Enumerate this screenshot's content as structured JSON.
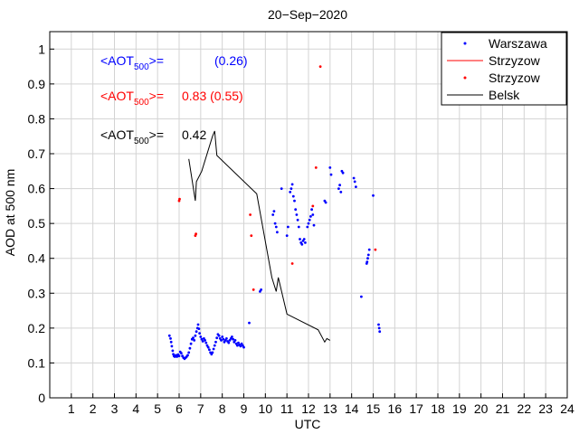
{
  "chart_data": {
    "type": "scatter",
    "title": "20−Sep−2020",
    "xlabel": "UTC",
    "ylabel": "AOD at 500 nm",
    "xlim": [
      0,
      24
    ],
    "ylim": [
      0,
      1.05
    ],
    "xticks": [
      1,
      2,
      3,
      4,
      5,
      6,
      7,
      8,
      9,
      10,
      11,
      12,
      13,
      14,
      15,
      16,
      17,
      18,
      19,
      20,
      21,
      22,
      23,
      24
    ],
    "yticks": [
      0,
      0.1,
      0.2,
      0.3,
      0.4,
      0.5,
      0.6,
      0.7,
      0.8,
      0.9,
      1
    ],
    "ytick_labels": [
      "0",
      "0.1",
      "0.2",
      "0.3",
      "0.4",
      "0.5",
      "0.6",
      "0.7",
      "0.8",
      "0.9",
      "1"
    ],
    "grid": true,
    "legend_position": "top-right",
    "legend": [
      {
        "label": "Warszawa",
        "style": "dots",
        "color": "#0000ff"
      },
      {
        "label": "Strzyzow",
        "style": "line",
        "color": "#ff0000"
      },
      {
        "label": "Strzyzow",
        "style": "dots",
        "color": "#ff0000"
      },
      {
        "label": "Belsk",
        "style": "line",
        "color": "#000000"
      }
    ],
    "annotations": [
      {
        "prefix": "<AOT",
        "sub": "500",
        "suffix": ">=",
        "value": "(0.26)",
        "color": "#0000ff"
      },
      {
        "prefix": "<AOT",
        "sub": "500",
        "suffix": ">=",
        "value": "0.83 (0.55)",
        "color": "#ff0000"
      },
      {
        "prefix": "<AOT",
        "sub": "500",
        "suffix": ">=",
        "value": "0.42",
        "color": "#000000"
      }
    ],
    "series": [
      {
        "name": "Warszawa",
        "kind": "scatter",
        "color": "#0000ff",
        "points": [
          [
            5.55,
            0.178
          ],
          [
            5.6,
            0.17
          ],
          [
            5.63,
            0.16
          ],
          [
            5.66,
            0.148
          ],
          [
            5.7,
            0.135
          ],
          [
            5.73,
            0.125
          ],
          [
            5.76,
            0.12
          ],
          [
            5.8,
            0.118
          ],
          [
            5.85,
            0.122
          ],
          [
            5.9,
            0.118
          ],
          [
            5.95,
            0.124
          ],
          [
            6.0,
            0.12
          ],
          [
            6.05,
            0.132
          ],
          [
            6.1,
            0.128
          ],
          [
            6.15,
            0.12
          ],
          [
            6.2,
            0.115
          ],
          [
            6.25,
            0.112
          ],
          [
            6.3,
            0.115
          ],
          [
            6.35,
            0.118
          ],
          [
            6.4,
            0.122
          ],
          [
            6.45,
            0.13
          ],
          [
            6.5,
            0.142
          ],
          [
            6.55,
            0.155
          ],
          [
            6.6,
            0.168
          ],
          [
            6.65,
            0.172
          ],
          [
            6.7,
            0.165
          ],
          [
            6.75,
            0.178
          ],
          [
            6.8,
            0.19
          ],
          [
            6.85,
            0.2
          ],
          [
            6.88,
            0.21
          ],
          [
            6.92,
            0.198
          ],
          [
            6.95,
            0.185
          ],
          [
            7.0,
            0.175
          ],
          [
            7.05,
            0.168
          ],
          [
            7.1,
            0.162
          ],
          [
            7.15,
            0.17
          ],
          [
            7.2,
            0.165
          ],
          [
            7.25,
            0.158
          ],
          [
            7.3,
            0.15
          ],
          [
            7.35,
            0.145
          ],
          [
            7.4,
            0.138
          ],
          [
            7.45,
            0.13
          ],
          [
            7.5,
            0.125
          ],
          [
            7.55,
            0.13
          ],
          [
            7.6,
            0.14
          ],
          [
            7.65,
            0.15
          ],
          [
            7.7,
            0.16
          ],
          [
            7.75,
            0.172
          ],
          [
            7.8,
            0.182
          ],
          [
            7.85,
            0.178
          ],
          [
            7.9,
            0.17
          ],
          [
            7.95,
            0.165
          ],
          [
            8.0,
            0.175
          ],
          [
            8.05,
            0.168
          ],
          [
            8.1,
            0.16
          ],
          [
            8.15,
            0.165
          ],
          [
            8.2,
            0.17
          ],
          [
            8.25,
            0.162
          ],
          [
            8.3,
            0.158
          ],
          [
            8.35,
            0.165
          ],
          [
            8.4,
            0.17
          ],
          [
            8.45,
            0.175
          ],
          [
            8.5,
            0.168
          ],
          [
            8.55,
            0.16
          ],
          [
            8.6,
            0.165
          ],
          [
            8.65,
            0.155
          ],
          [
            8.7,
            0.15
          ],
          [
            8.75,
            0.158
          ],
          [
            8.8,
            0.152
          ],
          [
            8.85,
            0.148
          ],
          [
            8.9,
            0.155
          ],
          [
            8.95,
            0.15
          ],
          [
            9.0,
            0.145
          ],
          [
            9.25,
            0.215
          ],
          [
            9.75,
            0.305
          ],
          [
            9.8,
            0.31
          ],
          [
            10.35,
            0.525
          ],
          [
            10.4,
            0.535
          ],
          [
            10.45,
            0.5
          ],
          [
            10.5,
            0.49
          ],
          [
            10.55,
            0.475
          ],
          [
            10.75,
            0.6
          ],
          [
            11.0,
            0.465
          ],
          [
            11.05,
            0.49
          ],
          [
            11.15,
            0.59
          ],
          [
            11.2,
            0.6
          ],
          [
            11.25,
            0.612
          ],
          [
            11.3,
            0.578
          ],
          [
            11.35,
            0.565
          ],
          [
            11.4,
            0.54
          ],
          [
            11.45,
            0.525
          ],
          [
            11.5,
            0.51
          ],
          [
            11.55,
            0.49
          ],
          [
            11.6,
            0.455
          ],
          [
            11.65,
            0.445
          ],
          [
            11.7,
            0.44
          ],
          [
            11.75,
            0.45
          ],
          [
            11.8,
            0.455
          ],
          [
            11.85,
            0.445
          ],
          [
            11.95,
            0.49
          ],
          [
            12.0,
            0.5
          ],
          [
            12.05,
            0.51
          ],
          [
            12.1,
            0.52
          ],
          [
            12.15,
            0.54
          ],
          [
            12.2,
            0.525
          ],
          [
            12.25,
            0.495
          ],
          [
            12.75,
            0.565
          ],
          [
            12.8,
            0.56
          ],
          [
            13.0,
            0.66
          ],
          [
            13.05,
            0.64
          ],
          [
            13.4,
            0.6
          ],
          [
            13.45,
            0.61
          ],
          [
            13.5,
            0.59
          ],
          [
            13.55,
            0.65
          ],
          [
            13.6,
            0.645
          ],
          [
            14.1,
            0.63
          ],
          [
            14.15,
            0.62
          ],
          [
            14.2,
            0.605
          ],
          [
            14.45,
            0.29
          ],
          [
            14.7,
            0.385
          ],
          [
            14.72,
            0.39
          ],
          [
            14.75,
            0.4
          ],
          [
            14.78,
            0.41
          ],
          [
            14.82,
            0.425
          ],
          [
            15.0,
            0.58
          ],
          [
            15.25,
            0.21
          ],
          [
            15.28,
            0.2
          ],
          [
            15.3,
            0.19
          ]
        ]
      },
      {
        "name": "Strzyzow",
        "kind": "scatter",
        "color": "#ff0000",
        "points": [
          [
            6.0,
            0.565
          ],
          [
            6.02,
            0.57
          ],
          [
            6.75,
            0.465
          ],
          [
            6.78,
            0.47
          ],
          [
            9.3,
            0.525
          ],
          [
            9.35,
            0.465
          ],
          [
            9.45,
            0.31
          ],
          [
            11.25,
            0.385
          ],
          [
            12.2,
            0.55
          ],
          [
            12.35,
            0.66
          ],
          [
            12.55,
            0.95
          ],
          [
            15.1,
            0.425
          ]
        ]
      },
      {
        "name": "Belsk",
        "kind": "line",
        "color": "#000000",
        "points": [
          [
            6.45,
            0.685
          ],
          [
            6.75,
            0.565
          ],
          [
            6.8,
            0.62
          ],
          [
            7.05,
            0.65
          ],
          [
            7.55,
            0.75
          ],
          [
            7.65,
            0.765
          ],
          [
            7.75,
            0.695
          ],
          [
            9.6,
            0.585
          ],
          [
            10.3,
            0.345
          ],
          [
            10.5,
            0.305
          ],
          [
            10.6,
            0.345
          ],
          [
            11.0,
            0.24
          ],
          [
            12.45,
            0.195
          ],
          [
            12.75,
            0.16
          ],
          [
            12.85,
            0.17
          ],
          [
            13.0,
            0.165
          ]
        ]
      }
    ]
  }
}
